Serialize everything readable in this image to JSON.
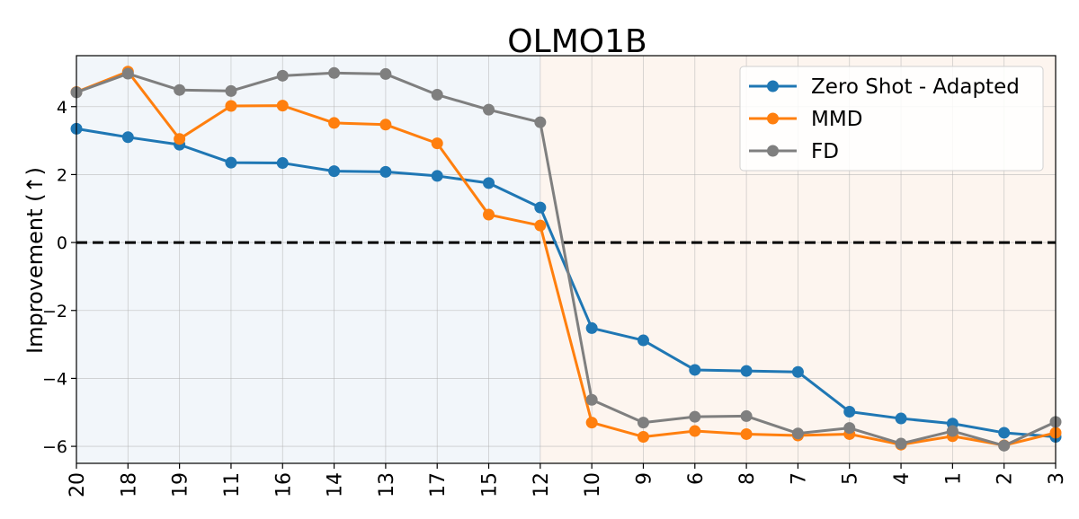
{
  "chart_data": {
    "type": "line",
    "title": "OLMO1B",
    "xlabel": "",
    "ylabel": "Improvement (↑)",
    "categories": [
      "20",
      "18",
      "19",
      "11",
      "16",
      "14",
      "13",
      "17",
      "15",
      "12",
      "10",
      "9",
      "6",
      "8",
      "7",
      "5",
      "4",
      "1",
      "2",
      "3"
    ],
    "ylim": [
      -6.5,
      5.5
    ],
    "yticks": [
      -6,
      -4,
      -2,
      0,
      2,
      4
    ],
    "ytick_labels": [
      "−6",
      "−4",
      "−2",
      "0",
      "2",
      "4"
    ],
    "grid": true,
    "legend_position": "top-right",
    "reference_line": {
      "value": 0,
      "style": "dashed",
      "color": "#000000"
    },
    "shaded_regions": [
      {
        "from_index": 0,
        "to_index": 9,
        "color": "#f2f6fa"
      },
      {
        "from_index": 9,
        "to_index": 19,
        "color": "#fdf5ef"
      }
    ],
    "series": [
      {
        "name": "Zero Shot - Adapted",
        "color": "#1f77b4",
        "values": [
          3.35,
          3.1,
          2.88,
          2.35,
          2.34,
          2.1,
          2.08,
          1.96,
          1.75,
          1.03,
          -2.52,
          -2.88,
          -3.75,
          -3.78,
          -3.81,
          -4.98,
          -5.18,
          -5.33,
          -5.6,
          -5.72
        ]
      },
      {
        "name": "MMD",
        "color": "#ff7f0e",
        "values": [
          4.43,
          5.03,
          3.05,
          4.02,
          4.03,
          3.52,
          3.47,
          2.92,
          0.82,
          0.5,
          -5.3,
          -5.72,
          -5.55,
          -5.64,
          -5.68,
          -5.64,
          -5.95,
          -5.7,
          -5.97,
          -5.6
        ]
      },
      {
        "name": "FD",
        "color": "#7f7f7f",
        "values": [
          4.42,
          4.97,
          4.49,
          4.46,
          4.91,
          4.99,
          4.96,
          4.35,
          3.91,
          3.54,
          -4.63,
          -5.3,
          -5.13,
          -5.11,
          -5.62,
          -5.46,
          -5.92,
          -5.55,
          -5.98,
          -5.28
        ]
      }
    ]
  }
}
